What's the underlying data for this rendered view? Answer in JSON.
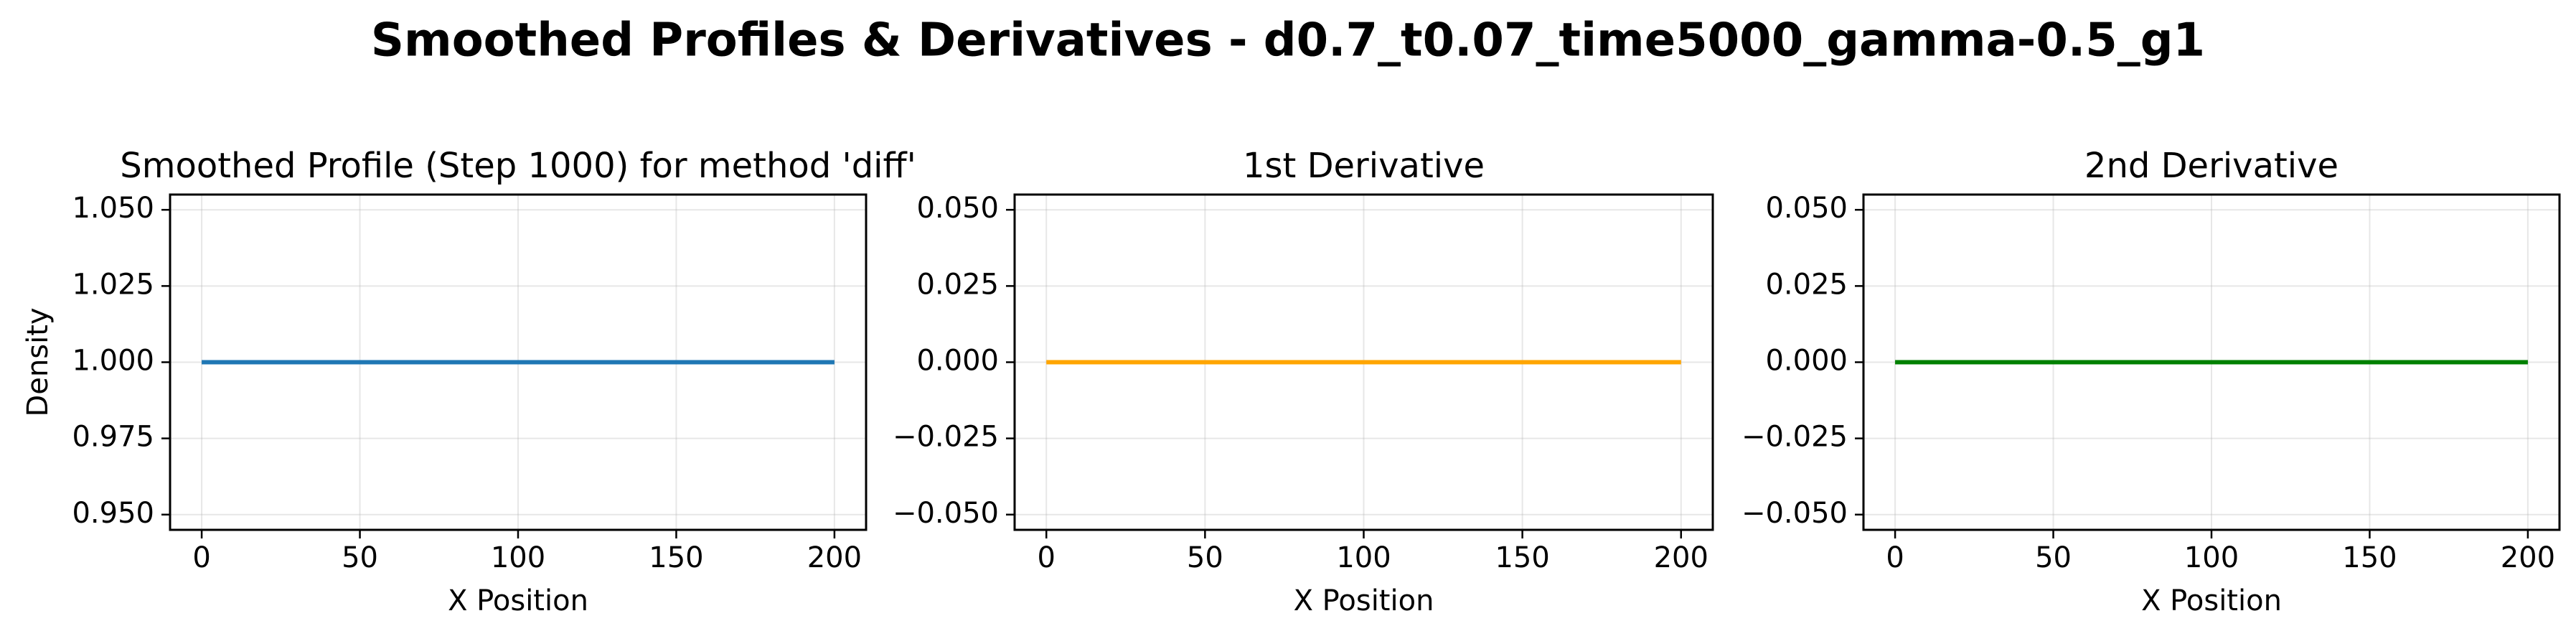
{
  "figure": {
    "suptitle": "Smoothed Profiles & Derivatives - d0.7_t0.07_time5000_gamma-0.5_g1"
  },
  "chart_data": [
    {
      "type": "line",
      "title": "Smoothed Profile (Step 1000) for method 'diff'",
      "xlabel": "X Position",
      "ylabel": "Density",
      "xlim": [
        -10,
        210
      ],
      "ylim": [
        0.945,
        1.055
      ],
      "xticks": [
        0,
        50,
        100,
        150,
        200
      ],
      "yticks": [
        0.95,
        0.975,
        1.0,
        1.025,
        1.05
      ],
      "ytick_labels": [
        "0.950",
        "0.975",
        "1.000",
        "1.025",
        "1.050"
      ],
      "grid": true,
      "series": [
        {
          "color": "#1f77b4",
          "x": [
            0,
            200
          ],
          "y": [
            1.0,
            1.0
          ]
        }
      ]
    },
    {
      "type": "line",
      "title": "1st Derivative",
      "xlabel": "X Position",
      "ylabel": "",
      "xlim": [
        -10,
        210
      ],
      "ylim": [
        -0.055,
        0.055
      ],
      "xticks": [
        0,
        50,
        100,
        150,
        200
      ],
      "yticks": [
        -0.05,
        -0.025,
        0.0,
        0.025,
        0.05
      ],
      "ytick_labels": [
        "−0.050",
        "−0.025",
        "0.000",
        "0.025",
        "0.050"
      ],
      "grid": true,
      "series": [
        {
          "color": "#ffa500",
          "x": [
            0,
            200
          ],
          "y": [
            0.0,
            0.0
          ]
        }
      ]
    },
    {
      "type": "line",
      "title": "2nd Derivative",
      "xlabel": "X Position",
      "ylabel": "",
      "xlim": [
        -10,
        210
      ],
      "ylim": [
        -0.055,
        0.055
      ],
      "xticks": [
        0,
        50,
        100,
        150,
        200
      ],
      "yticks": [
        -0.05,
        -0.025,
        0.0,
        0.025,
        0.05
      ],
      "ytick_labels": [
        "−0.050",
        "−0.025",
        "0.000",
        "0.025",
        "0.050"
      ],
      "grid": true,
      "series": [
        {
          "color": "#008000",
          "x": [
            0,
            200
          ],
          "y": [
            0.0,
            0.0
          ]
        }
      ]
    }
  ]
}
